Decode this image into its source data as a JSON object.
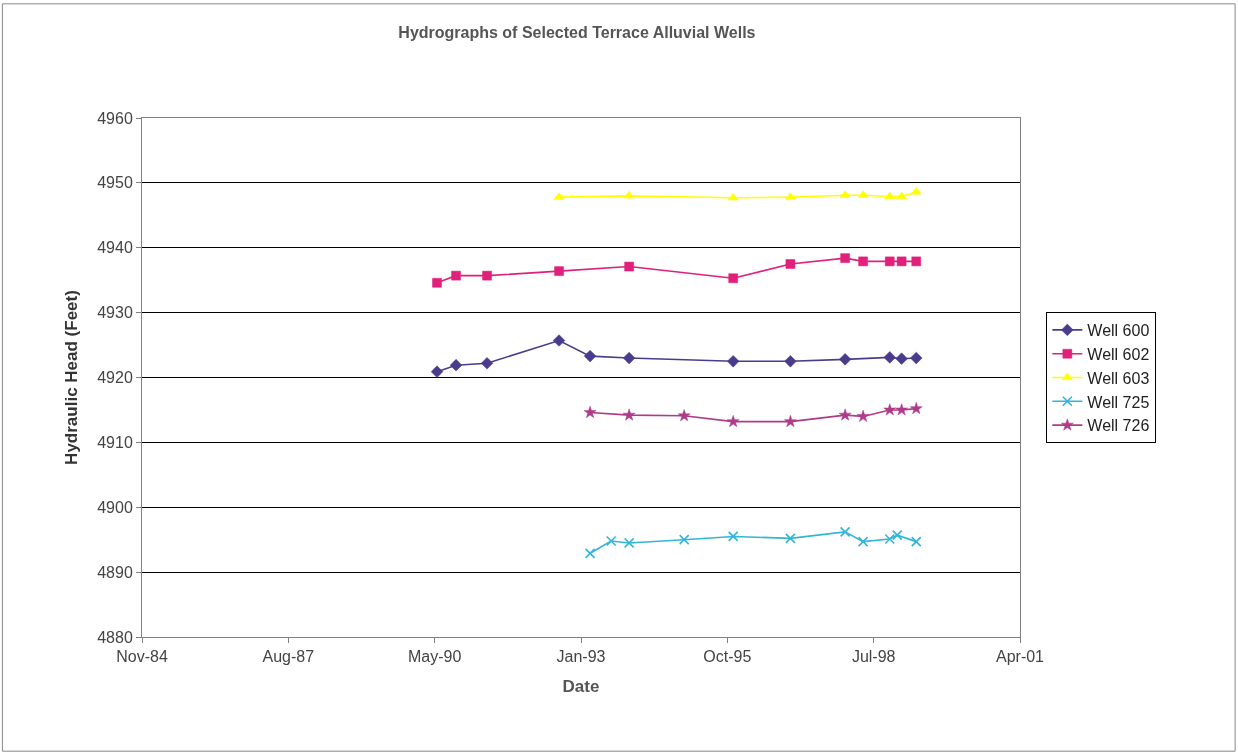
{
  "chart_data": {
    "type": "line",
    "title": "Hydrographs of Selected Terrace Alluvial Wells",
    "xlabel": "Date",
    "ylabel": "Hydraulic Head (Feet)",
    "xlim": [
      "1984-11-14",
      "2001-04-19"
    ],
    "xticks": [
      {
        "value": "1984-11-14",
        "label": "Nov-84"
      },
      {
        "value": "1987-08-11",
        "label": "Aug-87"
      },
      {
        "value": "1990-05-07",
        "label": "May-90"
      },
      {
        "value": "1993-01-31",
        "label": "Jan-93"
      },
      {
        "value": "1995-10-28",
        "label": "Oct-95"
      },
      {
        "value": "1998-07-24",
        "label": "Jul-98"
      },
      {
        "value": "2001-04-19",
        "label": "Apr-01"
      }
    ],
    "ylim": [
      4880,
      4960
    ],
    "yticks": [
      4880,
      4890,
      4900,
      4910,
      4920,
      4930,
      4940,
      4950,
      4960
    ],
    "grid": "y",
    "legend": "right",
    "line_style": "solid",
    "series": [
      {
        "name": "Well 600",
        "color": "#4b3b8c",
        "marker": "diamond",
        "x": [
          "1990-05-23",
          "1990-09-30",
          "1991-04-30",
          "1992-09-03",
          "1993-04-03",
          "1993-12-26",
          "1995-12-07",
          "1997-01-01",
          "1998-01-10",
          "1998-11-11",
          "1999-01-31",
          "1999-05-11"
        ],
        "values": [
          4920.9,
          4921.9,
          4922.2,
          4925.7,
          4923.3,
          4923.0,
          4922.5,
          4922.5,
          4922.8,
          4923.1,
          4922.9,
          4923.0
        ]
      },
      {
        "name": "Well 602",
        "color": "#e0207a",
        "marker": "square",
        "x": [
          "1990-05-23",
          "1990-09-30",
          "1991-04-30",
          "1992-09-03",
          "1993-12-26",
          "1995-12-07",
          "1997-01-01",
          "1998-01-10",
          "1998-05-13",
          "1998-11-11",
          "1999-01-31",
          "1999-05-11"
        ],
        "values": [
          4934.6,
          4935.7,
          4935.7,
          4936.4,
          4937.1,
          4935.3,
          4937.5,
          4938.4,
          4937.9,
          4937.9,
          4937.9,
          4937.9
        ]
      },
      {
        "name": "Well 603",
        "color": "#ffff00",
        "marker": "triangle",
        "x": [
          "1992-09-03",
          "1993-12-26",
          "1995-12-07",
          "1997-01-01",
          "1998-01-10",
          "1998-05-13",
          "1998-11-11",
          "1999-01-31",
          "1999-05-11"
        ],
        "values": [
          4947.8,
          4948.0,
          4947.7,
          4947.8,
          4948.1,
          4948.1,
          4947.9,
          4947.9,
          4948.6
        ]
      },
      {
        "name": "Well 725",
        "color": "#33b5d8",
        "marker": "cross",
        "x": [
          "1993-04-03",
          "1993-08-25",
          "1993-12-26",
          "1995-01-06",
          "1995-12-07",
          "1997-01-01",
          "1998-01-10",
          "1998-05-13",
          "1998-11-11",
          "1999-01-01",
          "1999-05-11"
        ],
        "values": [
          4892.9,
          4894.8,
          4894.5,
          4895.0,
          4895.5,
          4895.2,
          4896.2,
          4894.7,
          4895.1,
          4895.7,
          4894.7
        ]
      },
      {
        "name": "Well 726",
        "color": "#b03a8a",
        "marker": "star",
        "x": [
          "1993-04-03",
          "1993-12-26",
          "1995-01-06",
          "1995-12-07",
          "1997-01-01",
          "1998-01-10",
          "1998-05-13",
          "1998-11-11",
          "1999-01-31",
          "1999-05-11"
        ],
        "values": [
          4914.6,
          4914.2,
          4914.1,
          4913.2,
          4913.2,
          4914.2,
          4914.0,
          4915.0,
          4915.0,
          4915.2
        ]
      }
    ]
  }
}
